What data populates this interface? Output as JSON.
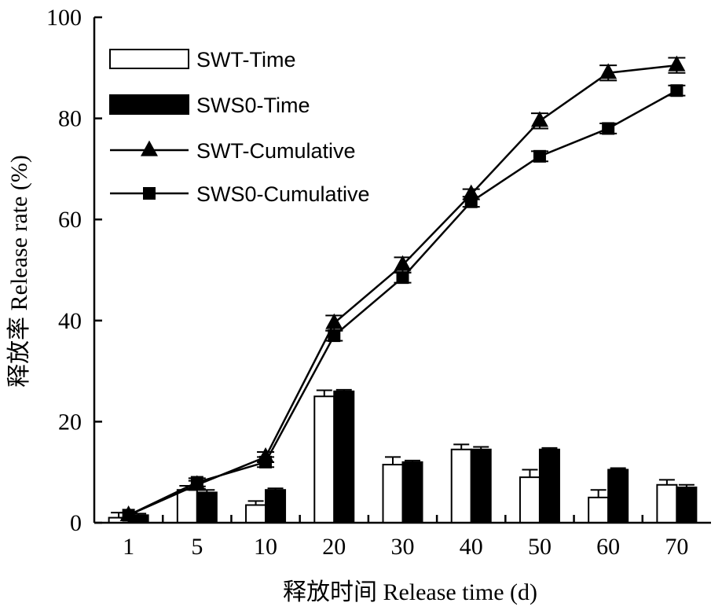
{
  "chart_data": {
    "type": "bar",
    "title": "",
    "xlabel": "释放时间 Release time (d)",
    "ylabel": "释放率 Release rate (%)",
    "ylim": [
      0,
      100
    ],
    "yticks": [
      0,
      20,
      40,
      60,
      80,
      100
    ],
    "categories": [
      "1",
      "5",
      "10",
      "20",
      "30",
      "40",
      "50",
      "60",
      "70"
    ],
    "legend_position": "top-left",
    "series": [
      {
        "name": "SWT-Time",
        "kind": "bar",
        "fill": "#ffffff",
        "values": [
          1,
          6.5,
          3.5,
          25,
          11.5,
          14.5,
          9,
          5,
          7.5
        ],
        "errors": [
          1,
          0.8,
          0.8,
          1.2,
          1.5,
          1,
          1.5,
          1.5,
          1
        ]
      },
      {
        "name": "SWS0-Time",
        "kind": "bar",
        "fill": "#000000",
        "values": [
          1.5,
          6,
          6.5,
          26,
          12,
          14.5,
          14.5,
          10.5,
          7
        ],
        "errors": [
          0.3,
          0.5,
          0.3,
          0.3,
          0.3,
          0.5,
          0.3,
          0.3,
          0.5
        ]
      },
      {
        "name": "SWT-Cumulative",
        "kind": "line",
        "marker": "triangle",
        "values": [
          1.5,
          7.5,
          13,
          39.5,
          51,
          65,
          79.5,
          89,
          90.5
        ],
        "errors": [
          0.5,
          0.8,
          1,
          1.5,
          1.5,
          1,
          1.5,
          1.5,
          1.5
        ]
      },
      {
        "name": "SWS0-Cumulative",
        "kind": "line",
        "marker": "square",
        "values": [
          1.5,
          8,
          12,
          37,
          48.5,
          63.5,
          72.5,
          78,
          85.5
        ],
        "errors": [
          0.5,
          0.8,
          1,
          1,
          1,
          1,
          1,
          1,
          1
        ]
      }
    ]
  }
}
